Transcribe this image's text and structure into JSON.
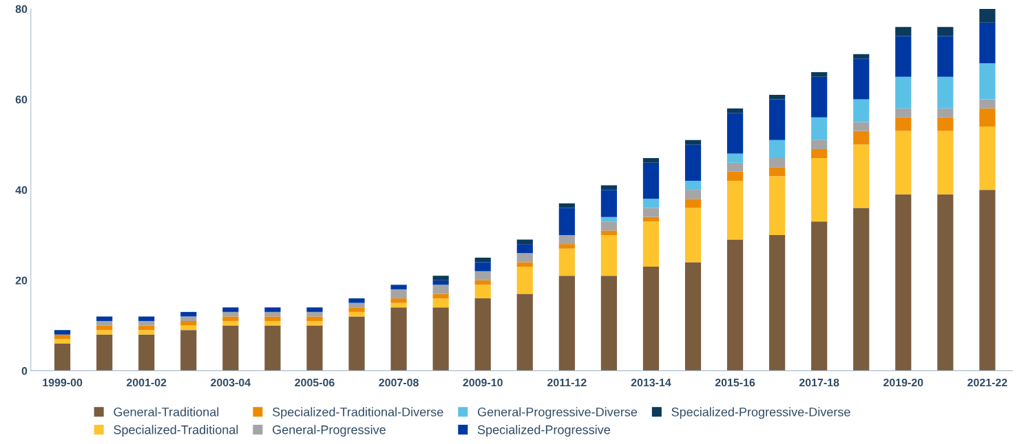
{
  "chart_data": {
    "type": "bar",
    "stacked": true,
    "categories": [
      "1999-00",
      null,
      "2001-02",
      null,
      "2003-04",
      null,
      "2005-06",
      null,
      "2007-08",
      null,
      "2009-10",
      null,
      "2011-12",
      null,
      "2013-14",
      null,
      "2015-16",
      null,
      "2017-18",
      null,
      "2019-20",
      null,
      "2021-22"
    ],
    "series": [
      {
        "name": "General-Traditional",
        "color": "#7a5c3e",
        "values": [
          6,
          8,
          8,
          9,
          10,
          10,
          10,
          12,
          14,
          14,
          16,
          17,
          21,
          21,
          23,
          24,
          29,
          30,
          33,
          36,
          39,
          39,
          40
        ]
      },
      {
        "name": "Specialized-Traditional",
        "color": "#fec42e",
        "values": [
          1,
          1,
          1,
          1,
          1,
          1,
          1,
          1,
          1,
          2,
          3,
          6,
          6,
          9,
          10,
          12,
          13,
          13,
          14,
          14,
          14,
          14,
          14
        ]
      },
      {
        "name": "Specialized-Traditional-Diverse",
        "color": "#ec8a05",
        "values": [
          1,
          1,
          1,
          1,
          1,
          1,
          1,
          1,
          1,
          1,
          1,
          1,
          1,
          1,
          1,
          2,
          2,
          2,
          2,
          3,
          3,
          3,
          4
        ]
      },
      {
        "name": "General-Progressive",
        "color": "#a5a5a5",
        "values": [
          0,
          1,
          1,
          1,
          1,
          1,
          1,
          1,
          2,
          2,
          2,
          2,
          2,
          2,
          2,
          2,
          2,
          2,
          2,
          2,
          2,
          2,
          2
        ]
      },
      {
        "name": "General-Progressive-Diverse",
        "color": "#5bc0e6",
        "values": [
          0,
          0,
          0,
          0,
          0,
          0,
          0,
          0,
          0,
          0,
          0,
          0,
          0,
          1,
          2,
          2,
          2,
          4,
          5,
          5,
          7,
          7,
          8
        ]
      },
      {
        "name": "Specialized-Progressive",
        "color": "#0038a3",
        "values": [
          1,
          1,
          1,
          1,
          1,
          1,
          1,
          1,
          1,
          1,
          2,
          2,
          6,
          6,
          8,
          8,
          9,
          9,
          9,
          9,
          9,
          9,
          9
        ]
      },
      {
        "name": "Specialized-Progressive-Diverse",
        "color": "#0b3a5b",
        "values": [
          0,
          0,
          0,
          0,
          0,
          0,
          0,
          0,
          0,
          1,
          1,
          1,
          1,
          1,
          1,
          1,
          1,
          1,
          1,
          1,
          2,
          2,
          3
        ]
      }
    ],
    "ylim": [
      0,
      80
    ],
    "yticks": [
      0,
      20,
      40,
      60,
      80
    ],
    "grid": false,
    "legend": "bottom"
  }
}
